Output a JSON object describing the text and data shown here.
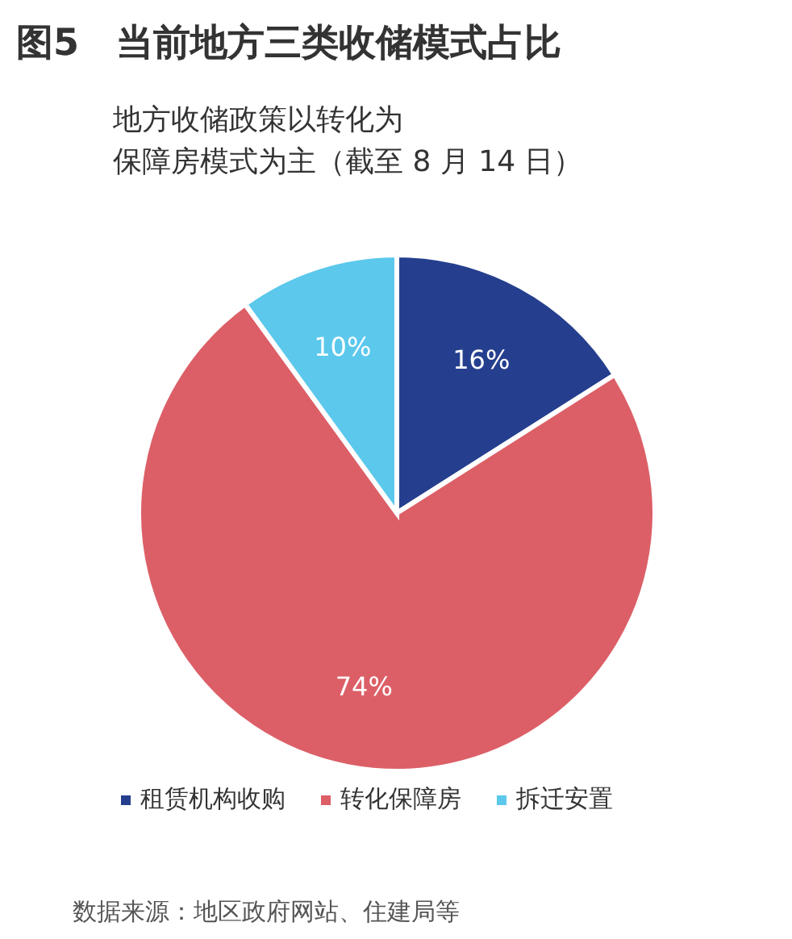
{
  "chart_data": {
    "type": "pie",
    "title": "图5　当前地方三类收储模式占比",
    "subtitle": "地方收储政策以转化为保障房模式为主（截至 8 月 14 日）",
    "categories": [
      "租赁机构收购",
      "转化保障房",
      "拆迁安置"
    ],
    "values": [
      16,
      74,
      10
    ],
    "colors": [
      "#253f8e",
      "#dc5f67",
      "#5bc8ec"
    ],
    "value_labels": [
      "16%",
      "74%",
      "10%"
    ],
    "legend": "bottom",
    "annotations": [
      "数据来源：地区政府网站、住建局等"
    ]
  }
}
